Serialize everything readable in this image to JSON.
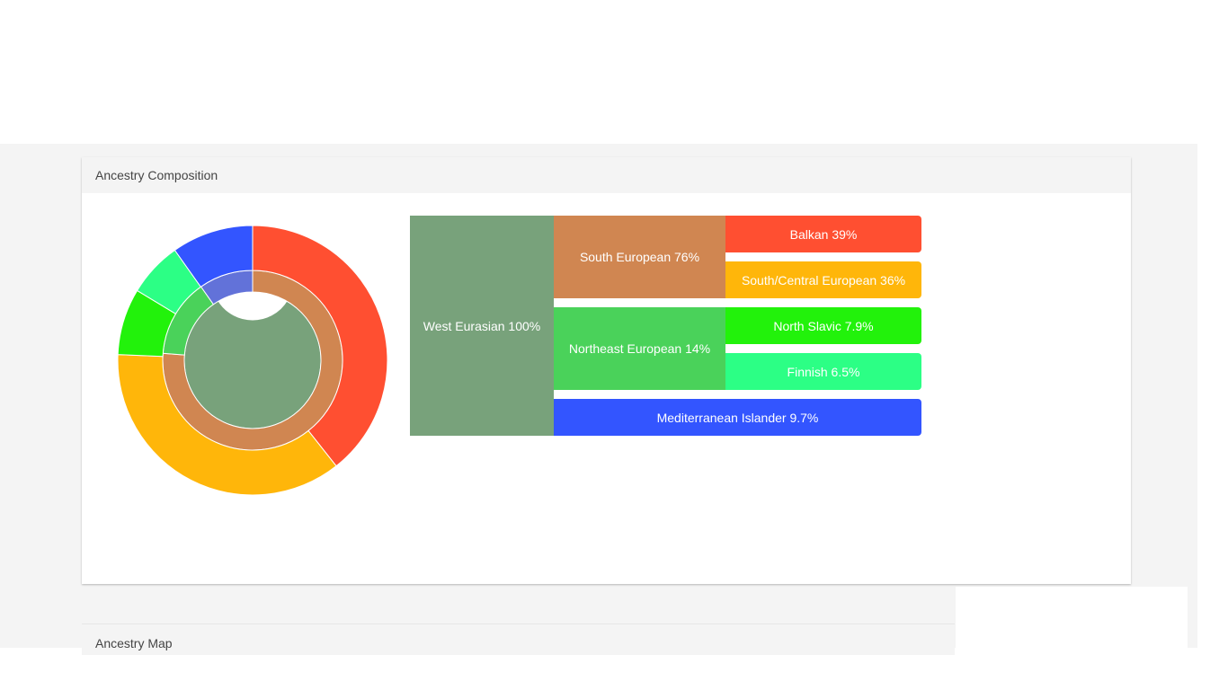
{
  "panels": {
    "composition_title": "Ancestry Composition",
    "map_title": "Ancestry Map"
  },
  "colors": {
    "west_eurasian": "#78a27b",
    "south_european": "#d08651",
    "northeast_european": "#4ad25a",
    "balkan": "#ff4f31",
    "south_central_european": "#ffb60a",
    "north_slavic": "#22f20b",
    "finnish": "#2cff85",
    "mediterranean_islander": "#3355ff",
    "mediterranean_inner": "#6272d9"
  },
  "blocks": {
    "west_eurasian": "West Eurasian 100%",
    "south_european": "South European 76%",
    "northeast_european": "Northeast European 14%",
    "balkan": "Balkan 39%",
    "south_central_european": "South/Central European 36%",
    "north_slavic": "North Slavic 7.9%",
    "finnish": "Finnish 6.5%",
    "mediterranean_islander": "Mediterranean Islander 9.7%"
  },
  "chart_data": {
    "type": "pie",
    "subtype": "sunburst",
    "levels": [
      [
        {
          "name": "West Eurasian",
          "value": 100,
          "color": "#78a27b"
        }
      ],
      [
        {
          "name": "South European",
          "value": 76,
          "color": "#d08651"
        },
        {
          "name": "Northeast European",
          "value": 14,
          "color": "#4ad25a"
        },
        {
          "name": "Mediterranean Islander",
          "value": 9.7,
          "color": "#6272d9"
        }
      ],
      [
        {
          "name": "Balkan",
          "value": 39,
          "color": "#ff4f31"
        },
        {
          "name": "South/Central European",
          "value": 36,
          "color": "#ffb60a"
        },
        {
          "name": "North Slavic",
          "value": 7.9,
          "color": "#22f20b"
        },
        {
          "name": "Finnish",
          "value": 6.5,
          "color": "#2cff85"
        },
        {
          "name": "Mediterranean Islander",
          "value": 9.7,
          "color": "#3355ff"
        }
      ]
    ]
  }
}
